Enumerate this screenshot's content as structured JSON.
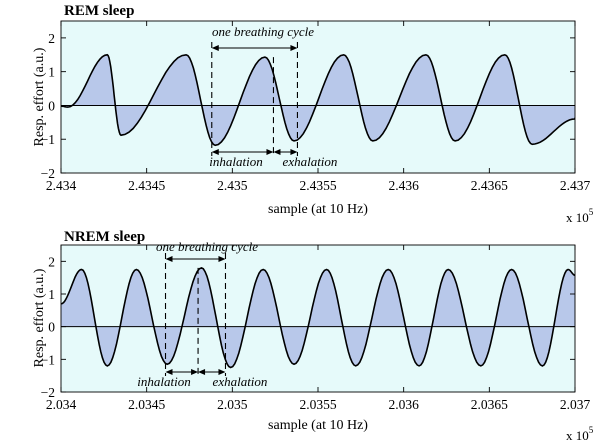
{
  "chart_data": [
    {
      "type": "area",
      "title": "REM sleep",
      "xlabel": "sample (at 10 Hz)",
      "ylabel": "Resp. effort (a.u.)",
      "x_multiplier_base": "x 10",
      "x_multiplier_exp": "5",
      "xlim": [
        2.434,
        2.437
      ],
      "ylim": [
        -2,
        2.5
      ],
      "xticks": [
        2.434,
        2.4345,
        2.435,
        2.4355,
        2.436,
        2.4365,
        2.437
      ],
      "xtick_labels": [
        "2.434",
        "2.4345",
        "2.435",
        "2.4355",
        "2.436",
        "2.4365",
        "2.437"
      ],
      "yticks": [
        -2,
        -1,
        0,
        1,
        2
      ],
      "ytick_labels": [
        "−2",
        "−1",
        "0",
        "1",
        "2"
      ],
      "background_color": "#e6fafa",
      "fill_color": "#b8c8ea",
      "line_color": "#000000",
      "signal": {
        "peaks": [
          {
            "x": 2.43427,
            "y": 1.5
          },
          {
            "x": 2.43473,
            "y": 1.5
          },
          {
            "x": 2.43519,
            "y": 1.43
          },
          {
            "x": 2.43565,
            "y": 1.5
          },
          {
            "x": 2.43613,
            "y": 1.5
          },
          {
            "x": 2.43659,
            "y": 1.5
          }
        ],
        "troughs": [
          {
            "x": 2.43404,
            "y": -0.05
          },
          {
            "x": 2.43435,
            "y": -0.88
          },
          {
            "x": 2.4349,
            "y": -1.18
          },
          {
            "x": 2.43536,
            "y": -1.05
          },
          {
            "x": 2.43582,
            "y": -1.05
          },
          {
            "x": 2.4363,
            "y": -1.05
          },
          {
            "x": 2.43675,
            "y": -1.15
          },
          {
            "x": 2.437,
            "y": -0.4
          }
        ]
      },
      "annotations": {
        "cycle_label": "one breathing cycle",
        "inhale_label": "inhalation",
        "exhale_label": "exhalation",
        "markers": [
          2.43488,
          2.43524,
          2.43538
        ]
      }
    },
    {
      "type": "area",
      "title": "NREM sleep",
      "xlabel": "sample (at 10 Hz)",
      "ylabel": "Resp. effort (a.u.)",
      "x_multiplier_base": "x 10",
      "x_multiplier_exp": "5",
      "xlim": [
        2.034,
        2.037
      ],
      "ylim": [
        -2,
        2.5
      ],
      "xticks": [
        2.034,
        2.0345,
        2.035,
        2.0355,
        2.036,
        2.0365,
        2.037
      ],
      "xtick_labels": [
        "2.034",
        "2.0345",
        "2.035",
        "2.0355",
        "2.036",
        "2.0365",
        "2.037"
      ],
      "yticks": [
        -2,
        -1,
        0,
        1,
        2
      ],
      "ytick_labels": [
        "−2",
        "−1",
        "0",
        "1",
        "2"
      ],
      "background_color": "#e6fafa",
      "fill_color": "#b8c8ea",
      "line_color": "#000000",
      "signal": {
        "peaks": [
          {
            "x": 2.03412,
            "y": 1.75
          },
          {
            "x": 2.03444,
            "y": 1.75
          },
          {
            "x": 2.03482,
            "y": 1.8
          },
          {
            "x": 2.03518,
            "y": 1.75
          },
          {
            "x": 2.03555,
            "y": 1.75
          },
          {
            "x": 2.03591,
            "y": 1.75
          },
          {
            "x": 2.03626,
            "y": 1.75
          },
          {
            "x": 2.03663,
            "y": 1.75
          },
          {
            "x": 2.03696,
            "y": 1.75
          }
        ],
        "troughs": [
          {
            "x": 2.03427,
            "y": -1.2
          },
          {
            "x": 2.03462,
            "y": -1.15
          },
          {
            "x": 2.03499,
            "y": -1.25
          },
          {
            "x": 2.03536,
            "y": -1.15
          },
          {
            "x": 2.03572,
            "y": -1.2
          },
          {
            "x": 2.03609,
            "y": -1.2
          },
          {
            "x": 2.03645,
            "y": -1.2
          },
          {
            "x": 2.03681,
            "y": -1.2
          }
        ]
      },
      "annotations": {
        "cycle_label": "one breathing cycle",
        "inhale_label": "inhalation",
        "exhale_label": "exhalation",
        "markers": [
          2.03461,
          2.0348,
          2.03496
        ]
      }
    }
  ]
}
